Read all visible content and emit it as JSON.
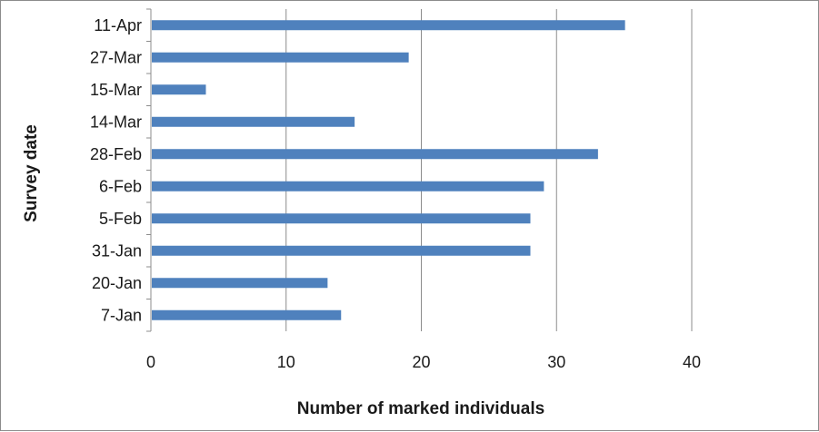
{
  "chart_data": {
    "type": "bar",
    "orientation": "horizontal",
    "categories": [
      "7-Jan",
      "20-Jan",
      "31-Jan",
      "5-Feb",
      "6-Feb",
      "28-Feb",
      "14-Mar",
      "15-Mar",
      "27-Mar",
      "11-Apr"
    ],
    "series": [
      {
        "values": [
          14,
          13,
          28,
          28,
          29,
          33,
          15,
          4,
          19,
          35
        ]
      }
    ],
    "xlabel": "Number of  marked individuals",
    "ylabel": "Survey date",
    "xlim": [
      0,
      40
    ],
    "xticks": [
      0,
      10,
      20,
      30,
      40
    ],
    "grid": "vertical",
    "legend": "none",
    "bar_color": "#4f81bd",
    "grid_color": "#8c8c8c"
  }
}
